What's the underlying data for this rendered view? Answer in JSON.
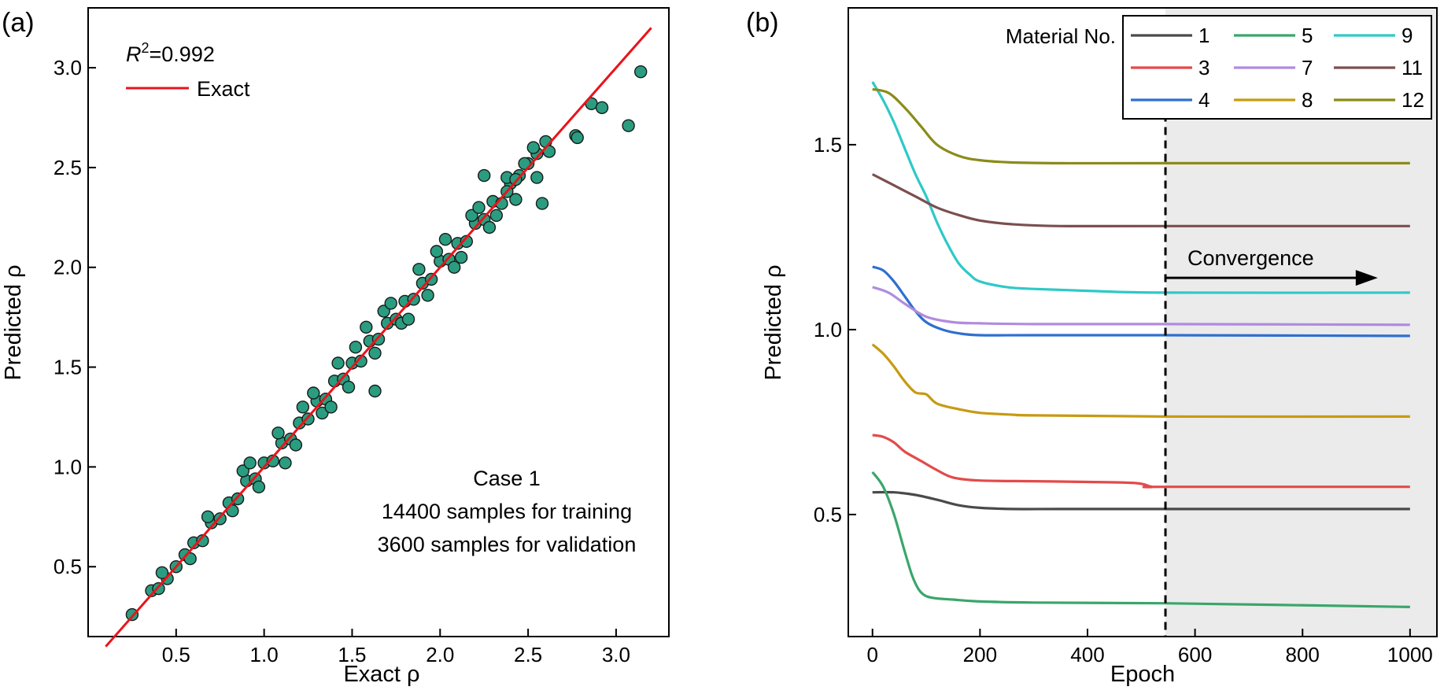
{
  "panel_labels": [
    "(a)",
    "(b)"
  ],
  "chart_data": [
    {
      "type": "scatter",
      "panel": "(a)",
      "xlabel": "Exact ρ",
      "ylabel": "Predicted ρ",
      "xlim": [
        0.0,
        3.3
      ],
      "ylim": [
        0.15,
        3.3
      ],
      "xticks": [
        0.5,
        1.0,
        1.5,
        2.0,
        2.5,
        3.0
      ],
      "yticks": [
        0.5,
        1.0,
        1.5,
        2.0,
        2.5,
        3.0
      ],
      "xtick_labels": [
        "0.5",
        "1.0",
        "1.5",
        "2.0",
        "2.5",
        "3.0"
      ],
      "ytick_labels": [
        "0.5",
        "1.0",
        "1.5",
        "2.0",
        "2.5",
        "3.0"
      ],
      "r2_label": "R",
      "r2_sup": "2",
      "r2_value": "=0.992",
      "legend": [
        {
          "name": "Exact",
          "color": "#e8141b"
        }
      ],
      "exact_line": {
        "x": [
          0.1,
          3.2
        ],
        "y": [
          0.1,
          3.2
        ],
        "color": "#e8141b"
      },
      "point_color": "#2a9d80",
      "points": [
        [
          0.25,
          0.26
        ],
        [
          0.36,
          0.38
        ],
        [
          0.4,
          0.39
        ],
        [
          0.45,
          0.44
        ],
        [
          0.5,
          0.5
        ],
        [
          0.55,
          0.56
        ],
        [
          0.6,
          0.62
        ],
        [
          0.65,
          0.63
        ],
        [
          0.7,
          0.72
        ],
        [
          0.75,
          0.74
        ],
        [
          0.8,
          0.82
        ],
        [
          0.85,
          0.84
        ],
        [
          0.9,
          0.93
        ],
        [
          0.95,
          0.94
        ],
        [
          1.0,
          1.02
        ],
        [
          1.05,
          1.03
        ],
        [
          1.1,
          1.12
        ],
        [
          1.15,
          1.14
        ],
        [
          1.2,
          1.22
        ],
        [
          1.25,
          1.24
        ],
        [
          1.3,
          1.33
        ],
        [
          1.35,
          1.34
        ],
        [
          1.4,
          1.43
        ],
        [
          1.45,
          1.44
        ],
        [
          1.5,
          1.52
        ],
        [
          1.55,
          1.53
        ],
        [
          1.6,
          1.63
        ],
        [
          1.65,
          1.64
        ],
        [
          1.7,
          1.72
        ],
        [
          1.75,
          1.74
        ],
        [
          1.8,
          1.83
        ],
        [
          1.85,
          1.84
        ],
        [
          1.9,
          1.92
        ],
        [
          1.95,
          1.94
        ],
        [
          2.0,
          2.03
        ],
        [
          2.05,
          2.04
        ],
        [
          2.1,
          2.12
        ],
        [
          2.15,
          2.13
        ],
        [
          2.2,
          2.22
        ],
        [
          2.25,
          2.24
        ],
        [
          2.3,
          2.33
        ],
        [
          2.35,
          2.32
        ],
        [
          2.4,
          2.42
        ],
        [
          2.45,
          2.46
        ],
        [
          2.5,
          2.52
        ],
        [
          2.55,
          2.57
        ],
        [
          0.42,
          0.47
        ],
        [
          0.58,
          0.54
        ],
        [
          0.68,
          0.75
        ],
        [
          0.82,
          0.78
        ],
        [
          0.88,
          0.98
        ],
        [
          0.97,
          0.9
        ],
        [
          1.08,
          1.17
        ],
        [
          1.18,
          1.11
        ],
        [
          1.28,
          1.37
        ],
        [
          1.33,
          1.27
        ],
        [
          1.42,
          1.52
        ],
        [
          1.48,
          1.4
        ],
        [
          1.58,
          1.7
        ],
        [
          1.63,
          1.57
        ],
        [
          1.68,
          1.78
        ],
        [
          1.78,
          1.72
        ],
        [
          1.88,
          1.99
        ],
        [
          1.93,
          1.86
        ],
        [
          2.03,
          2.14
        ],
        [
          2.08,
          2.0
        ],
        [
          2.18,
          2.26
        ],
        [
          2.28,
          2.2
        ],
        [
          2.38,
          2.45
        ],
        [
          2.43,
          2.34
        ],
        [
          0.92,
          1.02
        ],
        [
          1.12,
          1.02
        ],
        [
          1.22,
          1.3
        ],
        [
          1.38,
          1.3
        ],
        [
          1.52,
          1.6
        ],
        [
          1.72,
          1.82
        ],
        [
          1.82,
          1.74
        ],
        [
          1.98,
          2.08
        ],
        [
          2.12,
          2.05
        ],
        [
          2.22,
          2.3
        ],
        [
          2.32,
          2.26
        ],
        [
          2.48,
          2.52
        ],
        [
          1.63,
          1.38
        ],
        [
          2.25,
          2.46
        ],
        [
          2.43,
          2.44
        ],
        [
          2.53,
          2.6
        ],
        [
          2.55,
          2.45
        ],
        [
          2.6,
          2.63
        ],
        [
          2.58,
          2.32
        ],
        [
          2.77,
          2.66
        ],
        [
          2.78,
          2.65
        ],
        [
          2.86,
          2.82
        ],
        [
          2.92,
          2.8
        ],
        [
          3.07,
          2.71
        ],
        [
          3.14,
          2.98
        ],
        [
          2.62,
          2.58
        ],
        [
          2.38,
          2.38
        ]
      ],
      "annotations": [
        "Case 1",
        "14400 samples for training",
        "3600 samples for validation"
      ]
    },
    {
      "type": "line",
      "panel": "(b)",
      "xlabel": "Epoch",
      "ylabel": "Predicted ρ",
      "xlim": [
        -45,
        1050
      ],
      "ylim": [
        0.17,
        1.87
      ],
      "xticks": [
        0,
        200,
        400,
        600,
        800,
        1000
      ],
      "yticks": [
        0.5,
        1.0,
        1.5
      ],
      "xtick_labels": [
        "0",
        "200",
        "400",
        "600",
        "800",
        "1000"
      ],
      "ytick_labels": [
        "0.5",
        "1.0",
        "1.5"
      ],
      "convergence_epoch": 545,
      "convergence_label": "Convergence",
      "shaded_from_epoch": 545,
      "legend_title": "Material No.",
      "legend_placement": "top-right",
      "series": [
        {
          "name": "1",
          "color": "#4a4a4a",
          "x": [
            0,
            40,
            80,
            120,
            160,
            200,
            260,
            350,
            545,
            1000
          ],
          "y": [
            0.56,
            0.56,
            0.553,
            0.54,
            0.525,
            0.518,
            0.515,
            0.515,
            0.515,
            0.515
          ]
        },
        {
          "name": "3",
          "color": "#e34a4a",
          "x": [
            0,
            20,
            40,
            60,
            90,
            120,
            150,
            200,
            300,
            400,
            490,
            520,
            545,
            1000
          ],
          "y": [
            0.715,
            0.71,
            0.695,
            0.67,
            0.645,
            0.62,
            0.6,
            0.592,
            0.59,
            0.588,
            0.585,
            0.575,
            0.575,
            0.575
          ]
        },
        {
          "name": "4",
          "color": "#2f6fcf",
          "x": [
            0,
            20,
            40,
            60,
            80,
            100,
            130,
            160,
            200,
            300,
            545,
            1000
          ],
          "y": [
            1.17,
            1.16,
            1.13,
            1.09,
            1.05,
            1.02,
            1.0,
            0.99,
            0.985,
            0.985,
            0.985,
            0.983
          ]
        },
        {
          "name": "5",
          "color": "#3aa66a",
          "x": [
            0,
            20,
            40,
            60,
            75,
            90,
            110,
            150,
            200,
            300,
            545,
            1000
          ],
          "y": [
            0.615,
            0.575,
            0.5,
            0.4,
            0.33,
            0.29,
            0.275,
            0.27,
            0.265,
            0.262,
            0.26,
            0.25
          ]
        },
        {
          "name": "7",
          "color": "#b08be0",
          "x": [
            0,
            30,
            60,
            100,
            150,
            200,
            300,
            545,
            1000
          ],
          "y": [
            1.115,
            1.1,
            1.07,
            1.035,
            1.02,
            1.017,
            1.015,
            1.015,
            1.013
          ]
        },
        {
          "name": "8",
          "color": "#c79a12",
          "x": [
            0,
            20,
            40,
            60,
            80,
            100,
            120,
            160,
            200,
            260,
            300,
            545,
            1000
          ],
          "y": [
            0.96,
            0.935,
            0.9,
            0.86,
            0.83,
            0.825,
            0.8,
            0.785,
            0.775,
            0.77,
            0.768,
            0.765,
            0.765
          ]
        },
        {
          "name": "9",
          "color": "#2ec9c7",
          "x": [
            0,
            20,
            40,
            60,
            80,
            100,
            120,
            140,
            160,
            180,
            200,
            250,
            300,
            400,
            545,
            1000
          ],
          "y": [
            1.67,
            1.62,
            1.56,
            1.49,
            1.42,
            1.36,
            1.29,
            1.23,
            1.18,
            1.15,
            1.13,
            1.115,
            1.11,
            1.105,
            1.1,
            1.1
          ]
        },
        {
          "name": "11",
          "color": "#7b4f4f",
          "x": [
            0,
            40,
            80,
            120,
            160,
            200,
            260,
            350,
            545,
            1000
          ],
          "y": [
            1.42,
            1.39,
            1.36,
            1.33,
            1.31,
            1.295,
            1.285,
            1.28,
            1.28,
            1.28
          ]
        },
        {
          "name": "12",
          "color": "#8b8b1a",
          "x": [
            0,
            30,
            60,
            90,
            120,
            160,
            200,
            260,
            350,
            545,
            1000
          ],
          "y": [
            1.65,
            1.64,
            1.6,
            1.55,
            1.5,
            1.47,
            1.458,
            1.452,
            1.45,
            1.45,
            1.45
          ]
        }
      ]
    }
  ]
}
